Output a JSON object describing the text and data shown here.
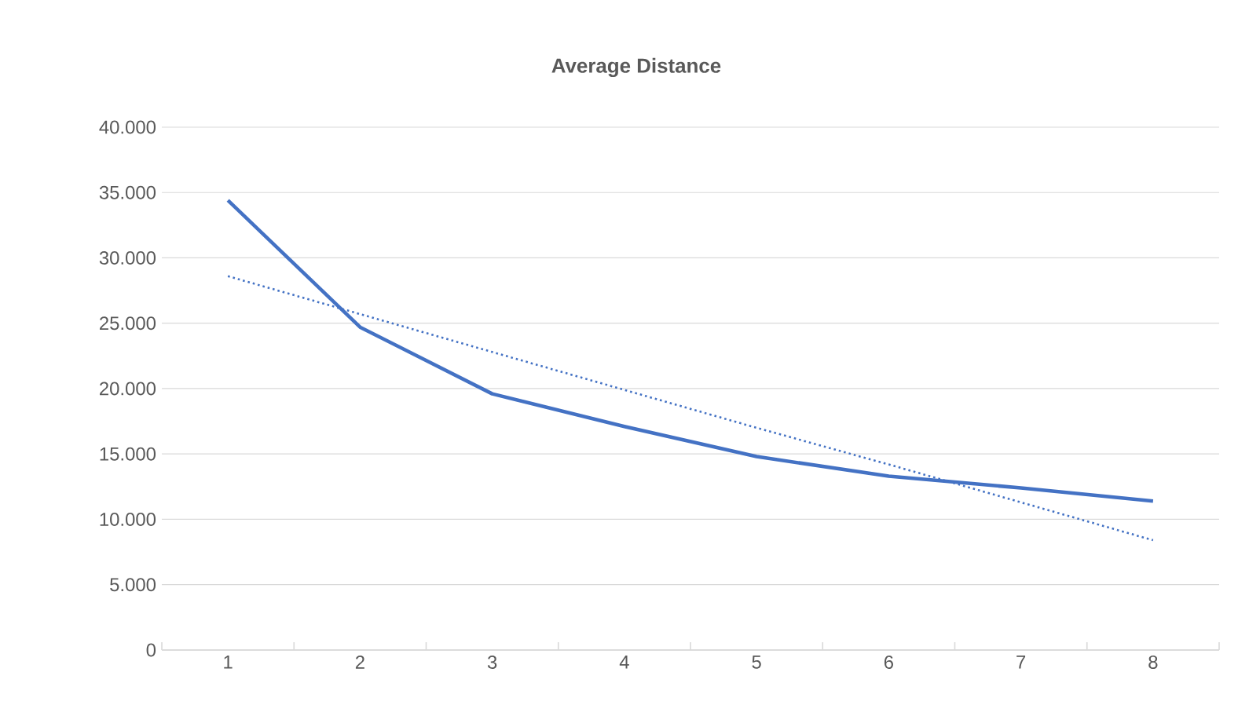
{
  "chart_data": {
    "type": "line",
    "title": "Average Distance",
    "categories": [
      "1",
      "2",
      "3",
      "4",
      "5",
      "6",
      "7",
      "8"
    ],
    "series": [
      {
        "color": "#4472c4",
        "values": [
          34400,
          24700,
          19600,
          17100,
          14800,
          13300,
          12400,
          11400
        ],
        "line_style": "solid"
      },
      {
        "color": "#4472c4",
        "values": [
          28600,
          25700,
          22800,
          19900,
          17000,
          14200,
          11300,
          8400
        ],
        "line_style": "dotted"
      }
    ],
    "ylim": [
      0,
      40000
    ],
    "yticks": [
      {
        "value": 0,
        "label": "0"
      },
      {
        "value": 5000,
        "label": "5.000"
      },
      {
        "value": 10000,
        "label": "10.000"
      },
      {
        "value": 15000,
        "label": "15.000"
      },
      {
        "value": 20000,
        "label": "20.000"
      },
      {
        "value": 25000,
        "label": "25.000"
      },
      {
        "value": 30000,
        "label": "30.000"
      },
      {
        "value": 35000,
        "label": "35.000"
      },
      {
        "value": 40000,
        "label": "40.000"
      }
    ],
    "grid": "y",
    "legend": false,
    "marker": "none"
  }
}
